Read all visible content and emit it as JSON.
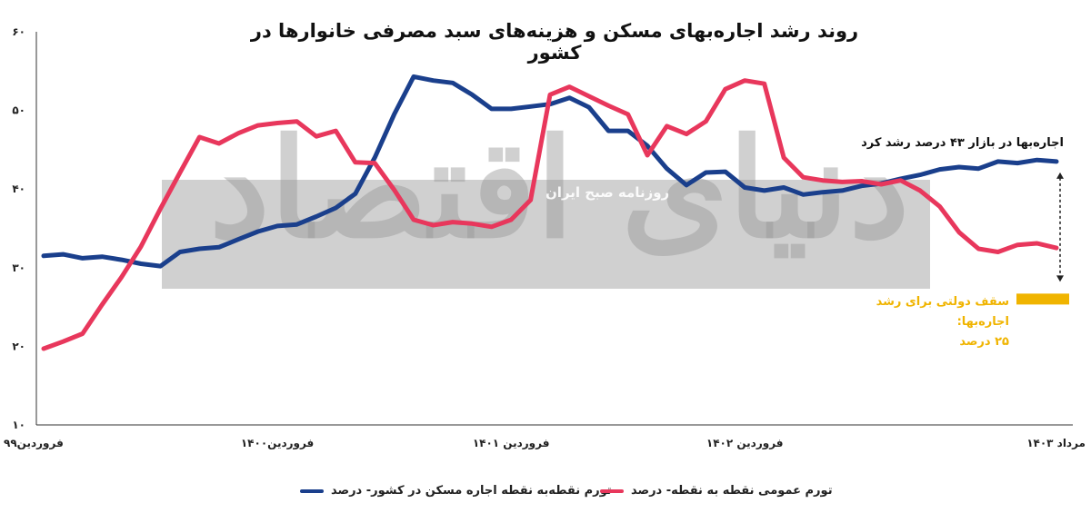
{
  "chart_data": {
    "type": "line",
    "title": "روند رشد اجاره‌بهای مسکن و هزینه‌های سبد مصرفی خانوارها در کشور",
    "ylim": [
      10,
      60
    ],
    "yticks": [
      "۱۰",
      "۲۰",
      "۳۰",
      "۴۰",
      "۵۰",
      "۶۰"
    ],
    "ytick_values": [
      10,
      20,
      30,
      40,
      50,
      60
    ],
    "xtick_labels": [
      "فروردین۹۹",
      "فروردین۱۴۰۰",
      "فروردین ۱۴۰۱",
      "فروردین ۱۴۰۲",
      "مرداد ۱۴۰۳"
    ],
    "xtick_index": [
      0,
      12,
      24,
      36,
      52
    ],
    "grid": false,
    "legend_position": "bottom",
    "series": [
      {
        "name": "تورم نقطه‌به نقطه اجاره مسکن در کشور- درصد",
        "color": "#1a3f8c",
        "values": [
          31.5,
          31.7,
          31.2,
          31.4,
          31.0,
          30.5,
          30.2,
          32.0,
          32.4,
          32.6,
          33.6,
          34.6,
          35.3,
          35.5,
          36.5,
          37.6,
          39.4,
          44.0,
          49.5,
          54.3,
          53.8,
          53.5,
          52.0,
          50.2,
          50.2,
          50.5,
          50.8,
          51.6,
          50.4,
          47.4,
          47.4,
          45.5,
          42.6,
          40.5,
          42.1,
          42.2,
          40.2,
          39.8,
          40.2,
          39.3,
          39.6,
          39.8,
          40.4,
          40.7,
          41.3,
          41.8,
          42.5,
          42.8,
          42.6,
          43.5,
          43.3,
          43.7,
          43.5
        ]
      },
      {
        "name": "تورم عمومی نقطه به نقطه- درصد",
        "color": "#e8375c",
        "values": [
          19.7,
          20.6,
          21.6,
          25.3,
          28.8,
          32.7,
          37.5,
          42.1,
          46.6,
          45.8,
          47.1,
          48.1,
          48.4,
          48.6,
          46.7,
          47.4,
          43.4,
          43.3,
          39.9,
          36.1,
          35.4,
          35.8,
          35.6,
          35.2,
          36.1,
          38.6,
          52.0,
          53.0,
          51.8,
          50.6,
          49.5,
          44.3,
          48.0,
          47.0,
          48.6,
          52.7,
          53.8,
          53.4,
          44.0,
          41.5,
          41.1,
          40.9,
          41.0,
          40.6,
          41.1,
          39.8,
          37.8,
          34.5,
          32.4,
          32.0,
          32.9,
          33.1,
          32.5
        ]
      }
    ]
  },
  "annotations": {
    "rent_growth": "اجاره‌بها در بازار ۴۳ درصد رشد کرد",
    "gov_cap_line1": "سقف دولتی برای رشد اجاره‌بها:",
    "gov_cap_line2": "۲۵ درصد",
    "gov_cap_color": "#f0b400"
  },
  "watermark": {
    "logo": "دنیای اقتصاد",
    "subtitle": "روزنامه صبح ایران"
  }
}
